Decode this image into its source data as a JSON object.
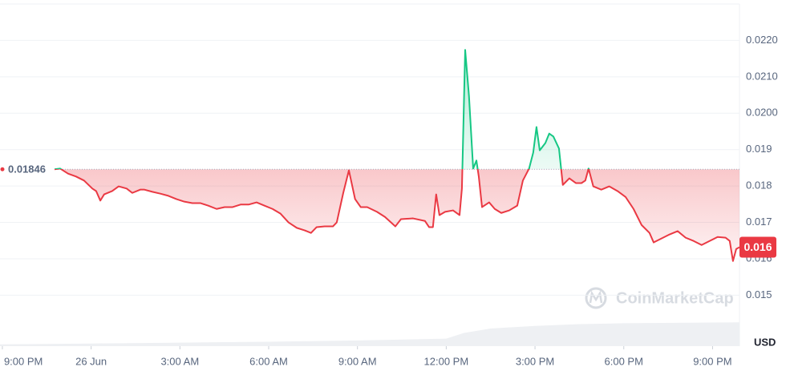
{
  "chart_data": {
    "type": "line",
    "x": [
      1.76,
      1.95,
      2.22,
      2.49,
      2.76,
      3.04,
      3.17,
      3.31,
      3.44,
      3.71,
      3.93,
      4.2,
      4.39,
      4.66,
      4.8,
      5.07,
      5.34,
      5.61,
      5.88,
      6.15,
      6.42,
      6.69,
      6.96,
      7.24,
      7.51,
      7.78,
      8.05,
      8.32,
      8.59,
      8.86,
      9.13,
      9.4,
      9.67,
      9.95,
      10.22,
      10.43,
      10.62,
      10.89,
      11.17,
      11.3,
      11.52,
      11.71,
      11.92,
      12.11,
      12.33,
      12.66,
      12.93,
      13.28,
      13.47,
      13.88,
      14.28,
      14.42,
      14.55,
      14.66,
      14.77,
      14.96,
      15.23,
      15.45,
      15.53,
      15.64,
      15.77,
      15.91,
      16.02,
      16.1,
      16.21,
      16.45,
      16.64,
      16.86,
      17.13,
      17.4,
      17.59,
      17.8,
      17.94,
      18.05,
      18.16,
      18.35,
      18.48,
      18.62,
      18.81,
      18.94,
      19.16,
      19.38,
      19.57,
      19.7,
      19.81,
      19.97,
      20.24,
      20.51,
      20.79,
      21.06,
      21.33,
      21.6,
      21.87,
      22.01,
      22.28,
      22.55,
      22.82,
      23.09,
      23.36,
      23.63,
      23.9,
      24.17,
      24.44,
      24.58,
      24.69,
      24.8,
      24.91
    ],
    "values": [
      0.01846,
      0.01848,
      0.01834,
      0.01826,
      0.01815,
      0.01793,
      0.01786,
      0.0176,
      0.01777,
      0.01786,
      0.01799,
      0.01793,
      0.01781,
      0.0179,
      0.0179,
      0.01784,
      0.01779,
      0.01773,
      0.01764,
      0.01757,
      0.01753,
      0.01753,
      0.01746,
      0.01737,
      0.01742,
      0.01742,
      0.01749,
      0.01749,
      0.01755,
      0.01746,
      0.01737,
      0.01724,
      0.017,
      0.01685,
      0.01678,
      0.01671,
      0.01687,
      0.01689,
      0.01689,
      0.017,
      0.01781,
      0.01843,
      0.01764,
      0.01742,
      0.01742,
      0.01729,
      0.01715,
      0.01689,
      0.01709,
      0.01711,
      0.01704,
      0.01687,
      0.01687,
      0.01777,
      0.0172,
      0.01729,
      0.01733,
      0.0172,
      0.01793,
      0.02174,
      0.02046,
      0.01848,
      0.0187,
      0.01826,
      0.01742,
      0.01755,
      0.01737,
      0.01726,
      0.01733,
      0.01746,
      0.01815,
      0.01848,
      0.01892,
      0.01962,
      0.01898,
      0.01918,
      0.01944,
      0.01936,
      0.01903,
      0.01803,
      0.01821,
      0.01808,
      0.01808,
      0.01815,
      0.01848,
      0.01799,
      0.0179,
      0.01799,
      0.01786,
      0.0177,
      0.01737,
      0.01693,
      0.01671,
      0.01645,
      0.01656,
      0.01667,
      0.01676,
      0.01658,
      0.01649,
      0.01638,
      0.01649,
      0.0166,
      0.01658,
      0.01649,
      0.01594,
      0.01627,
      0.01632
    ],
    "colors": {
      "up": "#16c784",
      "down": "#ea3943"
    },
    "reference": 0.01846,
    "current_price": {
      "value": 0.01632,
      "label": "0.016"
    },
    "volume": {
      "x": [
        -0.08,
        3,
        6,
        9,
        12,
        15,
        15.6,
        16.5,
        18,
        19.5,
        21,
        24.91
      ],
      "values": [
        4,
        6,
        8,
        10,
        13,
        17,
        30,
        40,
        46,
        50,
        52,
        54
      ],
      "color": "#eef0f3"
    },
    "vlim": [
      0,
      100
    ],
    "xlim": [
      -0.08,
      24.91
    ],
    "ylim": [
      0.0136,
      0.023
    ],
    "xticks": [
      {
        "value": 0,
        "label": "9:00 PM"
      },
      {
        "value": 3,
        "label": "26 Jun"
      },
      {
        "value": 6,
        "label": "3:00 AM"
      },
      {
        "value": 9,
        "label": "6:00 AM"
      },
      {
        "value": 12,
        "label": "9:00 AM"
      },
      {
        "value": 15,
        "label": "12:00 PM"
      },
      {
        "value": 18,
        "label": "3:00 PM"
      },
      {
        "value": 21,
        "label": "6:00 PM"
      },
      {
        "value": 24,
        "label": "9:00 PM"
      }
    ],
    "yticks": [
      0.015,
      0.016,
      0.017,
      0.018,
      0.019,
      {
        "value": 0.02,
        "label": "0.0200"
      },
      {
        "value": 0.021,
        "label": "0.0210"
      },
      {
        "value": 0.022,
        "label": "0.0220"
      }
    ],
    "y_unit": "USD",
    "watermark": "CoinMarketCap",
    "grid": true
  }
}
